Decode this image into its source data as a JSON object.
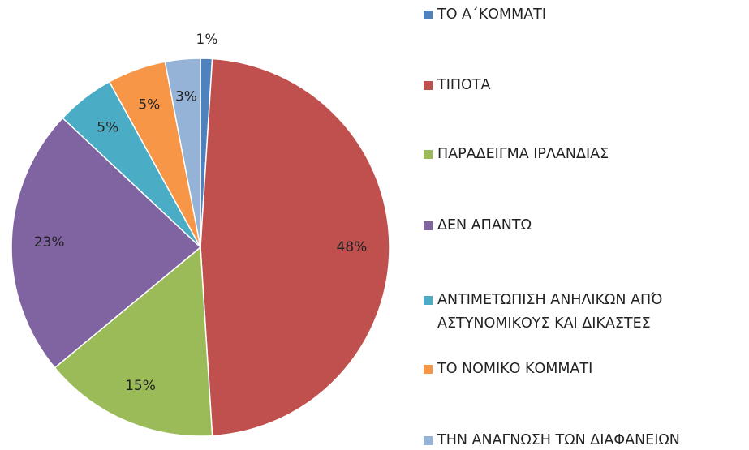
{
  "chart_data": {
    "type": "pie",
    "categories": [
      "ΤΟ Α΄ΚΟΜΜΑΤΙ",
      "ΤΙΠΟΤΑ",
      "ΠΑΡΑΔΕΙΓΜΑ ΙΡΛΑΝΔΙΑΣ",
      "ΔΕΝ ΑΠΑΝΤΩ",
      "ΑΝΤΙΜΕΤΩΠΙΣΗ ΑΝΗΛΙΚΩΝ ΑΠΌ ΑΣΤΥΝΟΜΙΚΟΥΣ ΚΑΙ ΔΙΚΑΣΤΕΣ",
      "ΤΟ ΝΟΜΙΚΟ ΚΟΜΜΑΤΙ",
      "ΤΗΝ ΑΝΑΓΝΩΣΗ ΤΩΝ ΔΙΑΦΑΝΕΙΩΝ"
    ],
    "values": [
      1,
      48,
      15,
      23,
      5,
      5,
      3
    ],
    "value_labels": [
      "1%",
      "48%",
      "15%",
      "23%",
      "5%",
      "5%",
      "3%"
    ],
    "colors": [
      "#4f81bd",
      "#c0504d",
      "#9bbb59",
      "#8064a2",
      "#4bacc6",
      "#f79646",
      "#95b3d7"
    ],
    "legend": "right"
  }
}
